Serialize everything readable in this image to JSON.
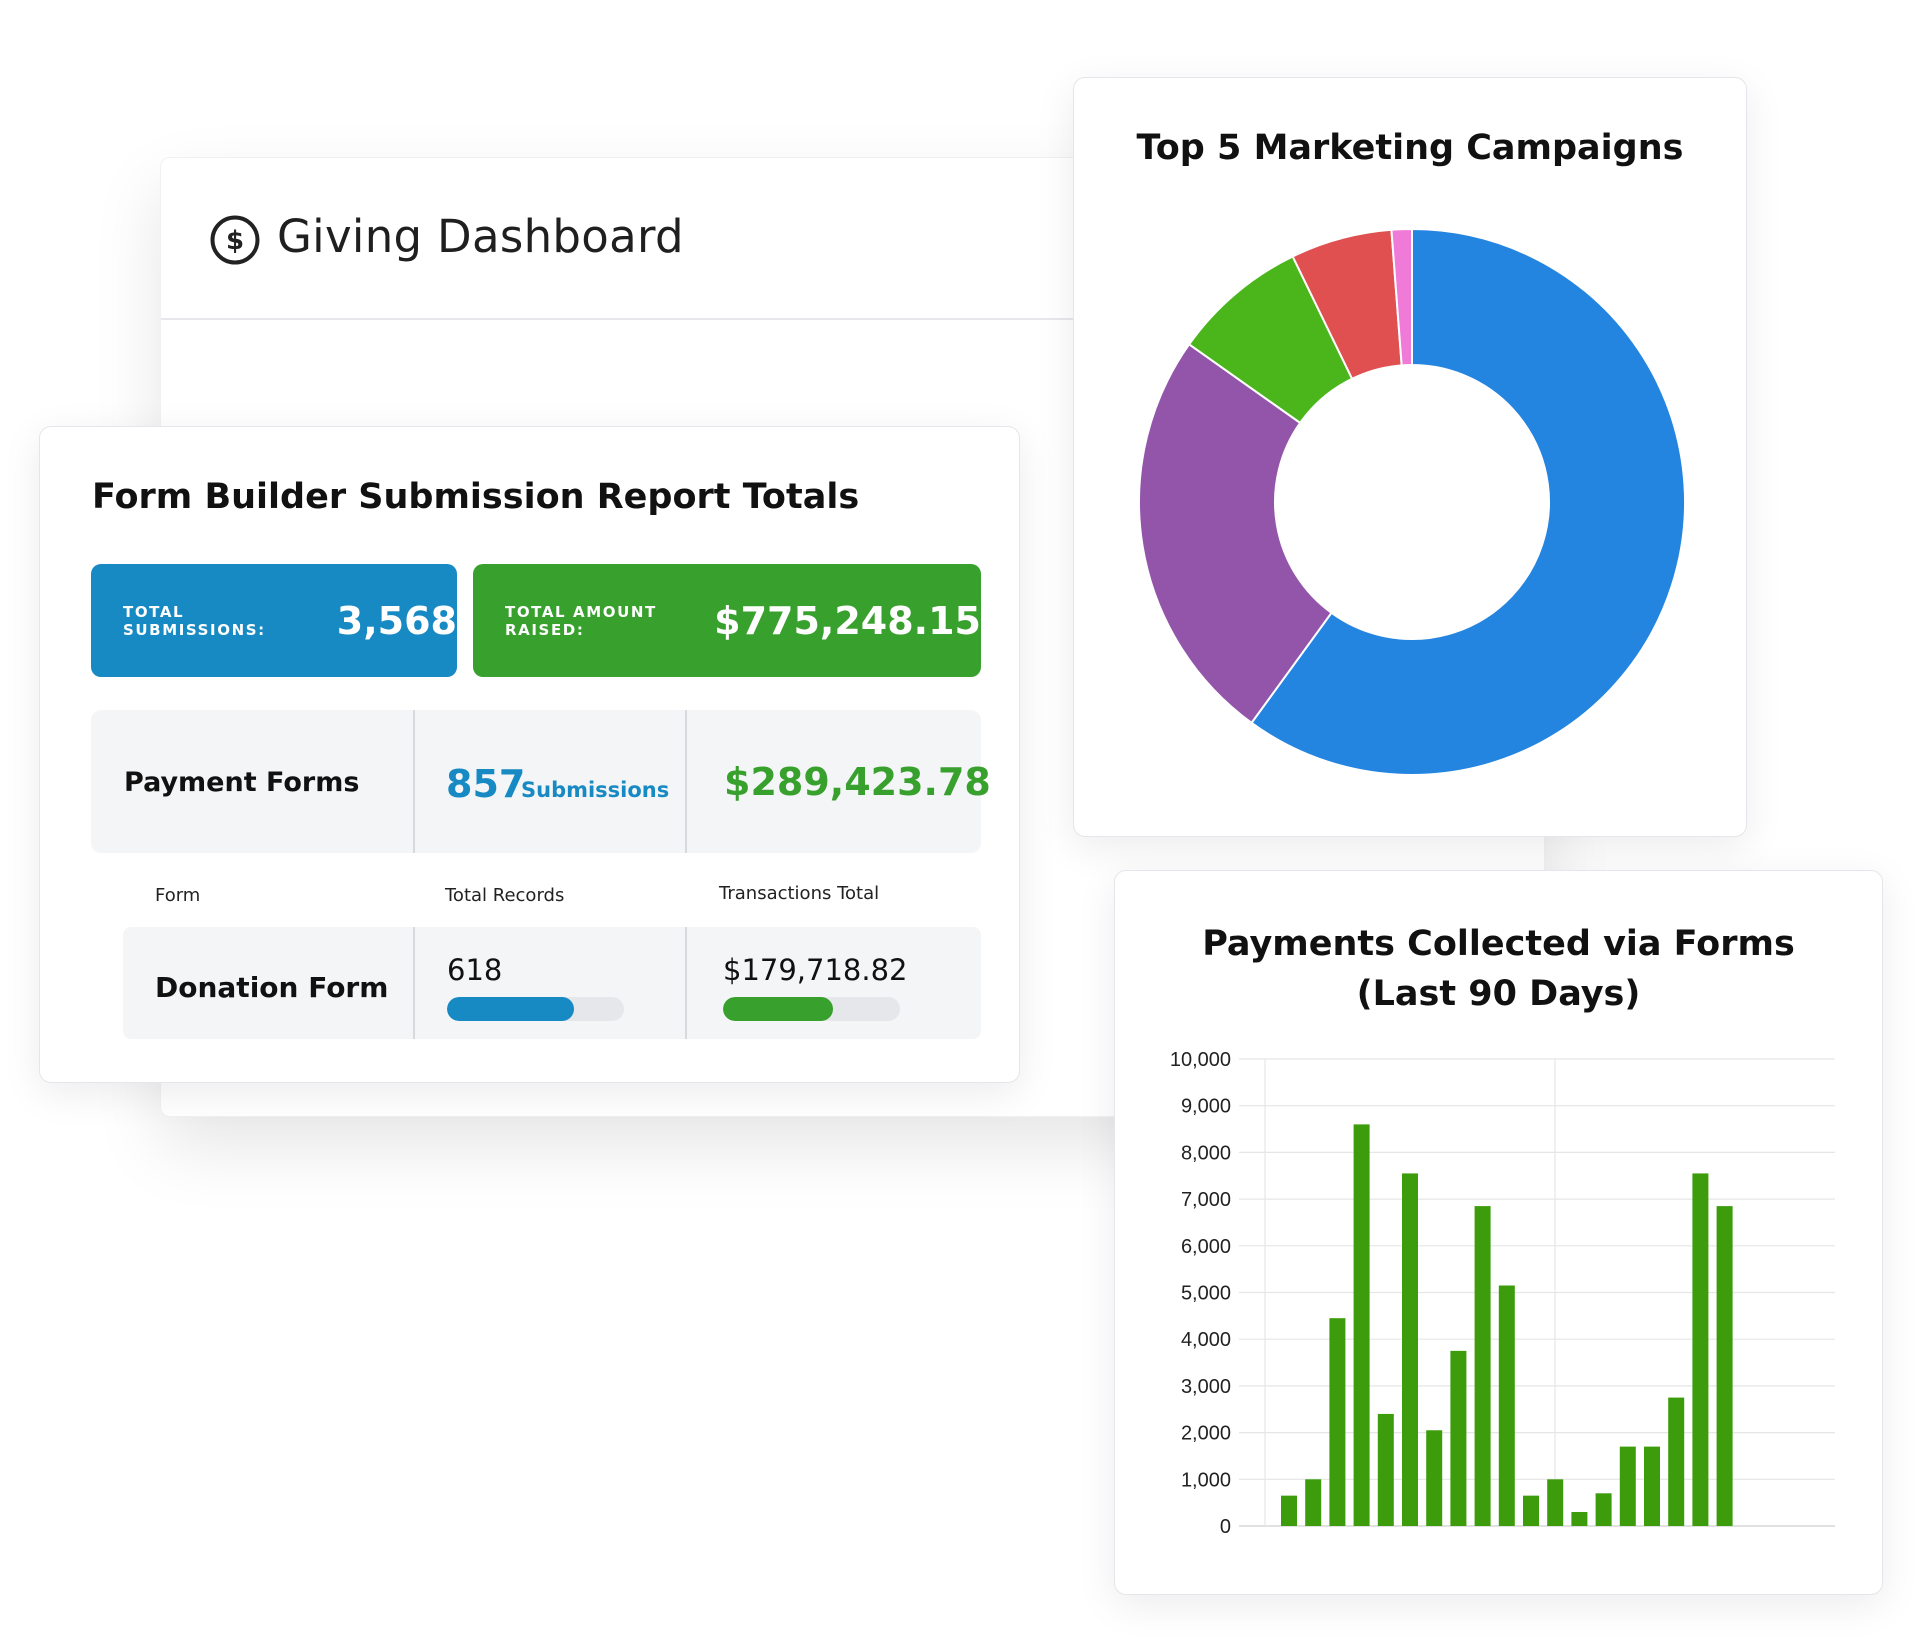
{
  "giving": {
    "title": "Giving Dashboard",
    "icon": "dollar-circle-icon"
  },
  "form_report": {
    "title": "Form Builder Submission Report Totals",
    "total_submissions": {
      "label": "TOTAL SUBMISSIONS:",
      "value": "3,568",
      "color": "#1789c3"
    },
    "total_raised": {
      "label": "TOTAL AMOUNT RAISED:",
      "value": "$775,248.15",
      "color": "#38a02c"
    },
    "payment_forms": {
      "label": "Payment Forms",
      "count": "857",
      "count_unit": "Submissions",
      "total": "$289,423.78"
    },
    "columns": [
      "Form",
      "Total Records",
      "Transactions Total"
    ],
    "rows": [
      {
        "form": "Donation Form",
        "records": "618",
        "records_fraction": 0.72,
        "total": "$179,718.82",
        "total_fraction": 0.62
      }
    ]
  },
  "charts": {
    "campaigns": {
      "type": "pie",
      "title": "Top 5 Marketing Campaigns",
      "donut": true,
      "slices": [
        {
          "value": 60.0,
          "color": "#2485e0"
        },
        {
          "value": 24.8,
          "color": "#9355aa"
        },
        {
          "value": 8.0,
          "color": "#4ab61b"
        },
        {
          "value": 6.0,
          "color": "#e05050"
        },
        {
          "value": 1.2,
          "color": "#f07ad8"
        }
      ]
    },
    "payments": {
      "type": "bar",
      "title_line1": "Payments Collected via Forms",
      "title_line2": "(Last 90 Days)",
      "ylim": [
        0,
        10000
      ],
      "yticks": [
        "0",
        "1,000",
        "2,000",
        "3,000",
        "4,000",
        "5,000",
        "6,000",
        "7,000",
        "8,000",
        "9,000",
        "10,000"
      ],
      "values": [
        650,
        1000,
        4450,
        8600,
        2400,
        7550,
        2050,
        3750,
        6850,
        5150,
        650,
        1000,
        300,
        700,
        1700,
        1700,
        2750,
        7550,
        6850
      ],
      "bar_color": "#3d9c0c",
      "grid": true
    }
  }
}
